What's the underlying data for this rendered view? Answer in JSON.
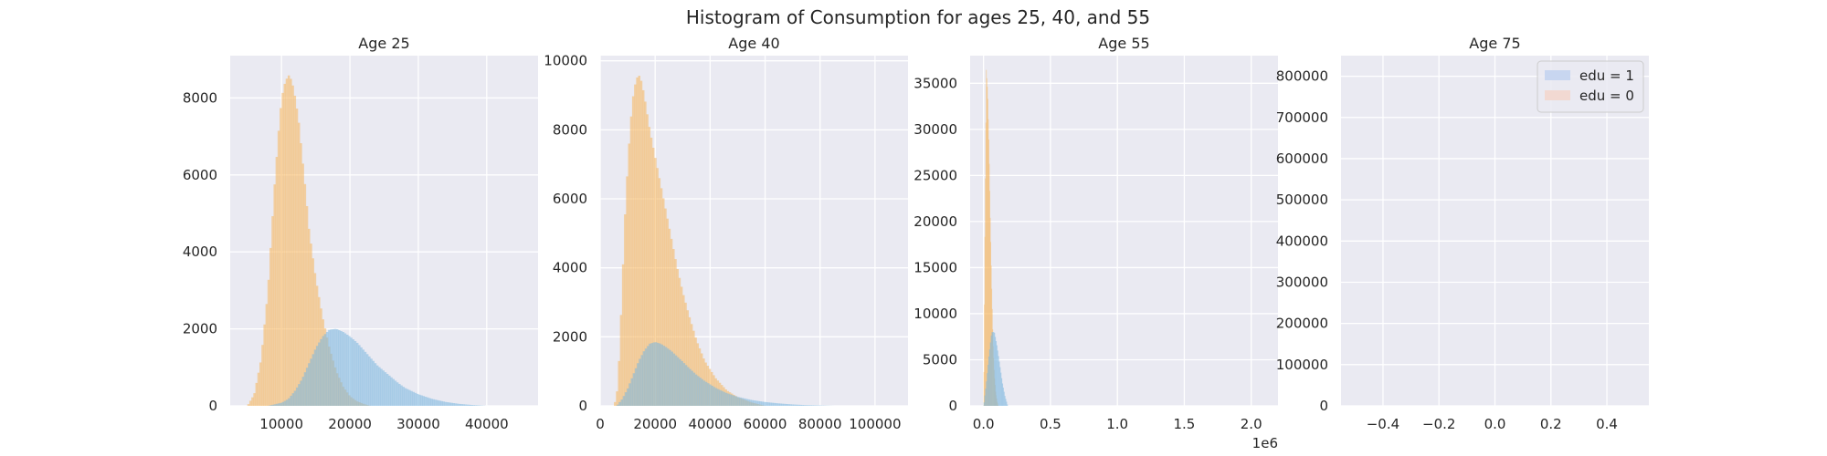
{
  "figure": {
    "suptitle": "Histogram of Consumption for ages 25, 40, and 55",
    "background": "#ffffff",
    "axes_facecolor": "#eaeaf2",
    "grid_color": "#ffffff"
  },
  "chart_data": [
    {
      "type": "bar",
      "title": "Age 25",
      "xlim": [
        2500,
        47500
      ],
      "ylim": [
        0,
        9100
      ],
      "xticks": [
        10000,
        20000,
        30000,
        40000
      ],
      "xtick_labels": [
        "10000",
        "20000",
        "30000",
        "40000"
      ],
      "yticks": [
        0,
        2000,
        4000,
        6000,
        8000
      ],
      "ytick_labels": [
        "0",
        "2000",
        "4000",
        "6000",
        "8000"
      ],
      "grid": true,
      "series": [
        {
          "color": "#f5b65f",
          "alpha": 0.55,
          "x": [
            5000,
            6000,
            7000,
            8000,
            9000,
            9500,
            10000,
            10500,
            11000,
            11500,
            12000,
            12500,
            13000,
            13500,
            14000,
            15000,
            16000,
            17000,
            18000,
            19000,
            20000,
            21000,
            22000,
            23000
          ],
          "y": [
            0,
            300,
            1200,
            3000,
            5800,
            7000,
            8000,
            8400,
            8600,
            8450,
            8000,
            7400,
            6500,
            5600,
            4600,
            3300,
            2300,
            1500,
            900,
            500,
            250,
            120,
            50,
            0
          ]
        },
        {
          "color": "#7db8e0",
          "alpha": 0.55,
          "x": [
            8000,
            10000,
            11000,
            12000,
            13000,
            14000,
            15000,
            16000,
            17000,
            18000,
            19000,
            20000,
            21000,
            22000,
            23000,
            24000,
            25000,
            26000,
            27000,
            28000,
            30000,
            32000,
            34000,
            36000,
            38000,
            40000
          ],
          "y": [
            0,
            80,
            180,
            400,
            700,
            1100,
            1500,
            1800,
            1980,
            2000,
            1920,
            1800,
            1650,
            1450,
            1250,
            1050,
            900,
            750,
            600,
            470,
            300,
            180,
            100,
            50,
            20,
            0
          ]
        }
      ]
    },
    {
      "type": "bar",
      "title": "Age 40",
      "xlim": [
        0,
        112000
      ],
      "ylim": [
        0,
        10150
      ],
      "xticks": [
        0,
        20000,
        40000,
        60000,
        80000,
        100000
      ],
      "xtick_labels": [
        "0",
        "20000",
        "40000",
        "60000",
        "80000",
        "100000"
      ],
      "yticks": [
        0,
        2000,
        4000,
        6000,
        8000,
        10000
      ],
      "ytick_labels": [
        "0",
        "2000",
        "4000",
        "6000",
        "8000",
        "10000"
      ],
      "grid": true,
      "series": [
        {
          "color": "#f5b65f",
          "alpha": 0.55,
          "x": [
            5000,
            6000,
            7000,
            8000,
            9000,
            10000,
            11000,
            12000,
            13000,
            14000,
            15000,
            16000,
            17000,
            18000,
            20000,
            22000,
            24000,
            26000,
            28000,
            30000,
            32000,
            35000,
            38000,
            42000,
            46000,
            50000,
            55000,
            60000
          ],
          "y": [
            0,
            300,
            1500,
            3500,
            5500,
            7000,
            8200,
            9000,
            9450,
            9600,
            9400,
            9000,
            8500,
            8000,
            7200,
            6400,
            5600,
            4800,
            4000,
            3300,
            2700,
            1900,
            1300,
            800,
            450,
            250,
            100,
            0
          ]
        },
        {
          "color": "#7db8e0",
          "alpha": 0.55,
          "x": [
            6000,
            8000,
            10000,
            12000,
            14000,
            16000,
            18000,
            20000,
            22000,
            24000,
            26000,
            28000,
            30000,
            32000,
            35000,
            38000,
            42000,
            46000,
            50000,
            55000,
            60000,
            65000,
            70000,
            75000,
            80000,
            85000
          ],
          "y": [
            0,
            200,
            500,
            900,
            1300,
            1600,
            1800,
            1850,
            1800,
            1700,
            1580,
            1430,
            1280,
            1120,
            900,
            720,
            520,
            370,
            260,
            170,
            110,
            70,
            40,
            20,
            10,
            0
          ]
        }
      ]
    },
    {
      "type": "bar",
      "title": "Age 55",
      "xlim": [
        -100000,
        2200000
      ],
      "ylim": [
        0,
        38000
      ],
      "xticks": [
        0,
        500000,
        1000000,
        1500000,
        2000000
      ],
      "xtick_labels": [
        "0.0",
        "0.5",
        "1.0",
        "1.5",
        "2.0"
      ],
      "x_offset_label": "1e6",
      "yticks": [
        0,
        5000,
        10000,
        15000,
        20000,
        25000,
        30000,
        35000
      ],
      "ytick_labels": [
        "0",
        "5000",
        "10000",
        "15000",
        "20000",
        "25000",
        "30000",
        "35000"
      ],
      "grid": true,
      "series": [
        {
          "color": "#f5b65f",
          "alpha": 0.55,
          "x": [
            0,
            10000,
            20000,
            30000,
            40000,
            50000,
            60000,
            70000,
            80000,
            90000,
            100000,
            110000
          ],
          "y": [
            0,
            20000,
            36500,
            34000,
            28000,
            20000,
            13000,
            7000,
            3500,
            1500,
            500,
            0
          ]
        },
        {
          "color": "#7db8e0",
          "alpha": 0.55,
          "x": [
            0,
            20000,
            40000,
            60000,
            80000,
            100000,
            120000,
            140000,
            160000,
            180000
          ],
          "y": [
            0,
            2500,
            5500,
            8000,
            8000,
            6500,
            4500,
            2500,
            1000,
            0
          ]
        }
      ]
    },
    {
      "type": "bar",
      "title": "Age 75",
      "xlim": [
        -0.55,
        0.55
      ],
      "ylim": [
        0,
        850000
      ],
      "xticks": [
        -0.4,
        -0.2,
        0.0,
        0.2,
        0.4
      ],
      "xtick_labels": [
        "−0.4",
        "−0.2",
        "0.0",
        "0.2",
        "0.4"
      ],
      "yticks": [
        0,
        100000,
        200000,
        300000,
        400000,
        500000,
        600000,
        700000,
        800000
      ],
      "ytick_labels": [
        "0",
        "100000",
        "200000",
        "300000",
        "400000",
        "500000",
        "600000",
        "700000",
        "800000"
      ],
      "grid": true,
      "series": [],
      "legend": {
        "placement": "top-right",
        "entries": [
          {
            "label": "edu = 1",
            "color": "#c8d6f0"
          },
          {
            "label": "edu = 0",
            "color": "#f2d9d2"
          }
        ]
      }
    }
  ]
}
